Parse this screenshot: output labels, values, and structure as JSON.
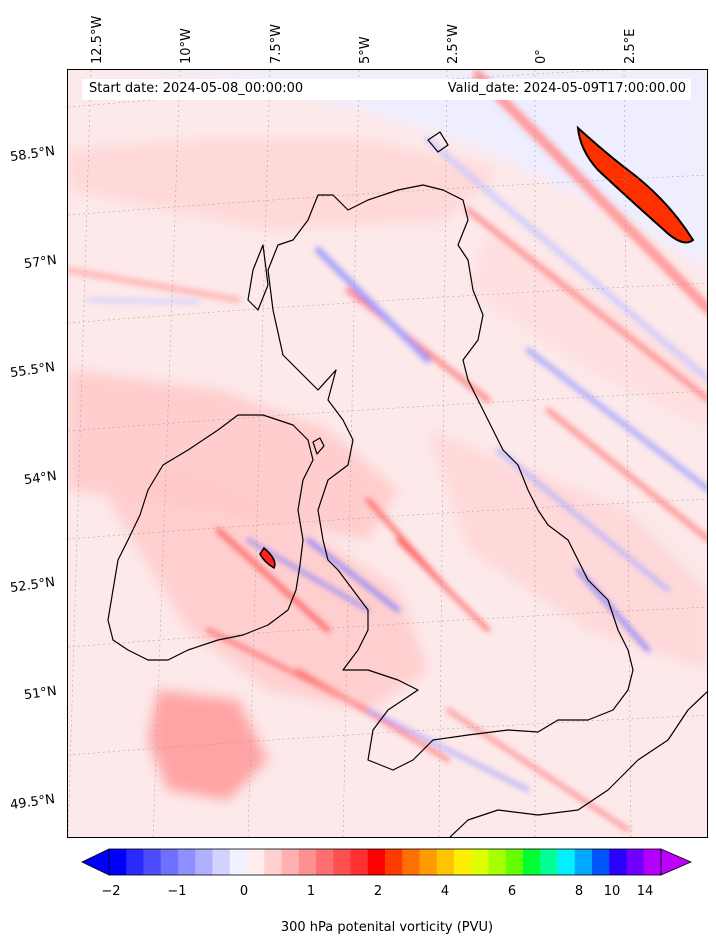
{
  "header": {
    "start_date": "Start date: 2024-05-08_00:00:00",
    "valid_date": "Valid_date: 2024-05-09T17:00:00.00"
  },
  "lon_labels": [
    "12.5°W",
    "10°W",
    "7.5°W",
    "5°W",
    "2.5°W",
    "0°",
    "2.5°E"
  ],
  "lat_labels": [
    "58.5°N",
    "57°N",
    "55.5°N",
    "54°N",
    "52.5°N",
    "51°N",
    "49.5°N"
  ],
  "colorbar": {
    "label": "300 hPa potenital vorticity (PVU)",
    "tick_labels": [
      "−2",
      "−1",
      "0",
      "1",
      "2",
      "4",
      "6",
      "8",
      "10",
      "14"
    ],
    "colors": [
      "#0000ff",
      "#2a2aff",
      "#4d4dff",
      "#7070ff",
      "#8f8fff",
      "#b0b0ff",
      "#d2d2ff",
      "#f0f0ff",
      "#ffecec",
      "#ffd0d0",
      "#ffb0b0",
      "#ff9090",
      "#ff6f6f",
      "#ff5050",
      "#ff3030",
      "#ff0000",
      "#ff3a00",
      "#ff7000",
      "#ff9a00",
      "#ffc400",
      "#ffee00",
      "#ddff00",
      "#a8ff00",
      "#66ff00",
      "#00ff33",
      "#00ff99",
      "#00f0ff",
      "#00a8ff",
      "#0055ff",
      "#2a00ff",
      "#7000ff",
      "#b300ff"
    ],
    "under_color": "#0000ff",
    "over_color": "#c000ff"
  },
  "map": {
    "background_color": "#fde9ea",
    "coast_color": "#000000",
    "grid": true
  }
}
